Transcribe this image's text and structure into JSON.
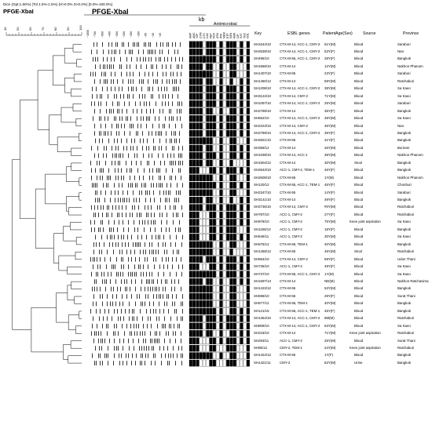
{
  "header": {
    "dice_line": "Dice (Opt:1.50%) (Tol 1.5%-1.5%) (H>0.0% S>0.0%) [0.0%-100.0%]",
    "pfge_small": "PFGE-XbaI",
    "pfge_large": "PFGE-XbaI",
    "kb_label": "kb",
    "scale_ticks": [
      "100",
      "90",
      "80",
      "70",
      "60",
      "50",
      "40"
    ],
    "ladder_ticks": [
      "~1000",
      "~700",
      "~500",
      "~400",
      "~300",
      "~200",
      "~150",
      "~100",
      "~50",
      "~30",
      "~20"
    ]
  },
  "antimicrobial": {
    "title": "Antimicrobial",
    "columns": [
      "AMP",
      "AMC",
      "TZP",
      "CXM",
      "CTX",
      "CAZ",
      "FEP",
      "FOX",
      "ATM",
      "IPM",
      "MEM",
      "ETP",
      "GEN",
      "AMK",
      "CIP",
      "SXT",
      "TGC",
      "COL"
    ]
  },
  "table": {
    "headers": {
      "key": "Key",
      "esbl": "ESBL genes",
      "patient": "PatientAge(Sex)",
      "source": "Source",
      "province": "Province"
    },
    "rows": [
      {
        "key": "SH1544/10",
        "esbl": "CTX-M-14, ACC-1, CMY-2",
        "patient": "61Y(M)",
        "source": "Blood",
        "province": "Saraburi",
        "ast": "111101110101110101"
      },
      {
        "key": "SH2539/10",
        "esbl": "CTX-M-14, ACC-1, CMY-2",
        "patient": "53Y(F)",
        "source": "Blood",
        "province": "Nan",
        "ast": "111101110101110101"
      },
      {
        "key": "SH495/10",
        "esbl": "CTX-M-55, ACC-1, CMY-2",
        "patient": "28Y(F)",
        "source": "Blood",
        "province": "Bangkok",
        "ast": "111111110101110101"
      },
      {
        "key": "SH1668/10",
        "esbl": "CTX-M-14",
        "patient": "12Y(M)",
        "source": "Blood",
        "province": "Nakhon Phanom",
        "ast": "111101100100110001"
      },
      {
        "key": "SH1407/10",
        "esbl": "CTX-M-55",
        "patient": "23Y(F)",
        "source": "Blood",
        "province": "Saraburi",
        "ast": "111111100100110001"
      },
      {
        "key": "SH1450/12",
        "esbl": "CTX-M-14",
        "patient": "59Y(M)",
        "source": "Blood",
        "province": "Ratchaburi",
        "ast": "111101100100100101"
      },
      {
        "key": "SH1208/10",
        "esbl": "CTX-M-14, ACC-1, CMY-2",
        "patient": "38Y(M)",
        "source": "Blood",
        "province": "Sa Kaeo",
        "ast": "111101110101110101"
      },
      {
        "key": "SH3124/10",
        "esbl": "CTX-M-14, CMY-2",
        "patient": "71Y(M)",
        "source": "Blood",
        "province": "Sa Kaeo",
        "ast": "111101110101110101"
      },
      {
        "key": "SH1097/10",
        "esbl": "CTX-M-14, ACC-1, CMY-2",
        "patient": "25Y(M)",
        "source": "Blood",
        "province": "Saraburi",
        "ast": "111101110101110101"
      },
      {
        "key": "SH2788/10",
        "esbl": "CTX-M-14",
        "patient": "35Y(F)",
        "source": "Blood",
        "province": "Bangkok",
        "ast": "111101100100110101"
      },
      {
        "key": "SH662/10",
        "esbl": "CTX-M-14, ACC-1, CMY-2",
        "patient": "39Y(M)",
        "source": "Blood",
        "province": "Sa Kaeo",
        "ast": "111101110101110101"
      },
      {
        "key": "SH2223/10",
        "esbl": "CTX-M-14, CMY-2",
        "patient": "36Y(M)",
        "source": "Blood",
        "province": "Nan",
        "ast": "111101110101110101"
      },
      {
        "key": "SH2789/10",
        "esbl": "CTX-M-14, ACC-1, CMY-2",
        "patient": "35Y(F)",
        "source": "Blood",
        "province": "Bangkok",
        "ast": "111101110101110101"
      },
      {
        "key": "SH2821/10",
        "esbl": "CTX-M-55",
        "patient": "31Y(F)",
        "source": "Blood",
        "province": "Bangkok",
        "ast": "111111100100110001"
      },
      {
        "key": "SH359/12",
        "esbl": "CTX-M-14",
        "patient": "26Y(M)",
        "source": "Blood",
        "province": "Buriram",
        "ast": "111101100100110101"
      },
      {
        "key": "SH1038/10",
        "esbl": "CTX-M-14, ACC-1",
        "patient": "38Y(M)",
        "source": "Blood",
        "province": "Nakhon Phanom",
        "ast": "111101110100110101"
      },
      {
        "key": "SH1504/12",
        "esbl": "CTX-M-14",
        "patient": "30Y(M)",
        "source": "Stool",
        "province": "Bangkok",
        "ast": "111101100100100001"
      },
      {
        "key": "SH2543/10",
        "esbl": "ACC-1, CMY-2, TEM-1",
        "patient": "46Y(F)",
        "source": "Blood",
        "province": "Bangkok",
        "ast": "111000110101110101"
      },
      {
        "key": "SH2609/10",
        "esbl": "CTX-M-55",
        "patient": "1Y(M)",
        "source": "Blood",
        "province": "Nakhon Phanom",
        "ast": "111111100100110001"
      },
      {
        "key": "SH120/12",
        "esbl": "CTX-M-55, ACC-1, TEM-1",
        "patient": "46Y(F)",
        "source": "Blood",
        "province": "Chonburi",
        "ast": "111111110100110101"
      },
      {
        "key": "SH2347/10",
        "esbl": "CTX-M-55",
        "patient": "14Y(F)",
        "source": "Blood",
        "province": "Saraburi",
        "ast": "111111100100110001"
      },
      {
        "key": "SH3141/10",
        "esbl": "CTX-M-14",
        "patient": "49Y(F)",
        "source": "Blood",
        "province": "Bangkok",
        "ast": "111101100100100101"
      },
      {
        "key": "SH2736/10",
        "esbl": "CTX-M-14, CMY-2",
        "patient": "#0Y(M)",
        "source": "Blood",
        "province": "Ratchaburi",
        "ast": "111101110101110101"
      },
      {
        "key": "SH787/10",
        "esbl": "ACC-1, CMY-2",
        "patient": "27Y(F)",
        "source": "Blood",
        "province": "Ratchaburi",
        "ast": "111000110101110101"
      },
      {
        "key": "SH978/10",
        "esbl": "ACC-1, CMY-2",
        "patient": "75Y(M)",
        "source": "Knee joint aspiration",
        "province": "Sa Kaeo",
        "ast": "111000110101110101"
      },
      {
        "key": "SH1155/12",
        "esbl": "ACC-1, CMY-2",
        "patient": "18Y(F)",
        "source": "Blood",
        "province": "Bangkok",
        "ast": "111000110101110001"
      },
      {
        "key": "SH646/11",
        "esbl": "ACC-1, CMY-2",
        "patient": "30Y(M)",
        "source": "Blood",
        "province": "Sa Kaeo",
        "ast": "111000110101110101"
      },
      {
        "key": "SH575/12",
        "esbl": "CTX-M-55, TEM-1",
        "patient": "40Y(M)",
        "source": "Blood",
        "province": "Bangkok",
        "ast": "111111100100110001"
      },
      {
        "key": "SH1458/12",
        "esbl": "CTX-M-55",
        "patient": "45Y(M)",
        "source": "Stool",
        "province": "Ratchaburi",
        "ast": "111111100100100001"
      },
      {
        "key": "SH964/10",
        "esbl": "CTX-M-14, CMY-2",
        "patient": "59Y(F)",
        "source": "Blood",
        "province": "Udon Thani",
        "ast": "111101110101110101"
      },
      {
        "key": "SH735/10",
        "esbl": "ACC-1, CMY-2",
        "patient": "49Y(F)",
        "source": "Blood",
        "province": "Sa Kaeo",
        "ast": "111000110101110101"
      },
      {
        "key": "SH737/10",
        "esbl": "CTX-M-55, ACC-1, CMY-2",
        "patient": "1Y(M)",
        "source": "Blood",
        "province": "Sa Kaeo",
        "ast": "111111110101110101"
      },
      {
        "key": "SH1697/13",
        "esbl": "CTX-M-14",
        "patient": "ND(M)",
        "source": "Blood",
        "province": "Nakhon Ratchasima",
        "ast": "111101100100110101"
      },
      {
        "key": "SH1423/12",
        "esbl": "CTX-M-55",
        "patient": "53Y(M)",
        "source": "Blood",
        "province": "Bangkok",
        "ast": "111111100100110001"
      },
      {
        "key": "SH698/10",
        "esbl": "CTX-M-55",
        "patient": "29Y(F)",
        "source": "Blood",
        "province": "Surat Thani",
        "ast": "111111100100110001"
      },
      {
        "key": "SH577/12",
        "esbl": "CTX-M-55, TEM-1",
        "patient": "40Y(M)",
        "source": "Blood",
        "province": "Bangkok",
        "ast": "111111100100110001"
      },
      {
        "key": "SH121/15",
        "esbl": "CTX-M-55, ACC-1, TEM-1",
        "patient": "46Y(F)",
        "source": "Blood",
        "province": "Bangkok",
        "ast": "111111110100110101"
      },
      {
        "key": "SH1364/10",
        "esbl": "CTX-M-14, ACC-1, CMY-2",
        "patient": "9M(M)",
        "source": "Blood",
        "province": "Ratchaburi",
        "ast": "111101110101110101"
      },
      {
        "key": "SH809/10",
        "esbl": "CTX-M-14, ACC-1, CMY-2",
        "patient": "63Y(M)",
        "source": "Blood",
        "province": "Sa Kaeo",
        "ast": "111101110101110101"
      },
      {
        "key": "SH218/10",
        "esbl": "CTX-M-14",
        "patient": "71Y(M)",
        "source": "Knee joint aspiration",
        "province": "Ratchaburi",
        "ast": "111101100100110101"
      },
      {
        "key": "SH293/11",
        "esbl": "ACC-1, CMY-2",
        "patient": "25Y(M)",
        "source": "Blood",
        "province": "Surat Thani",
        "ast": "111000110101110101"
      },
      {
        "key": "SH85/12",
        "esbl": "CMY-2, TEM-1",
        "patient": "24Y(M)",
        "source": "Knee joint aspiration",
        "province": "Ratchaburi",
        "ast": "111000110001110001"
      },
      {
        "key": "SH1424/12",
        "esbl": "CTX-M-55",
        "patient": "1Y(F)",
        "source": "Blood",
        "province": "Bangkok",
        "ast": "111111100100110001"
      },
      {
        "key": "SH1421/11",
        "esbl": "CMY-2",
        "patient": "62Y(M)",
        "source": "Urine",
        "province": "Bangkok",
        "ast": "111000110001110001"
      }
    ]
  }
}
